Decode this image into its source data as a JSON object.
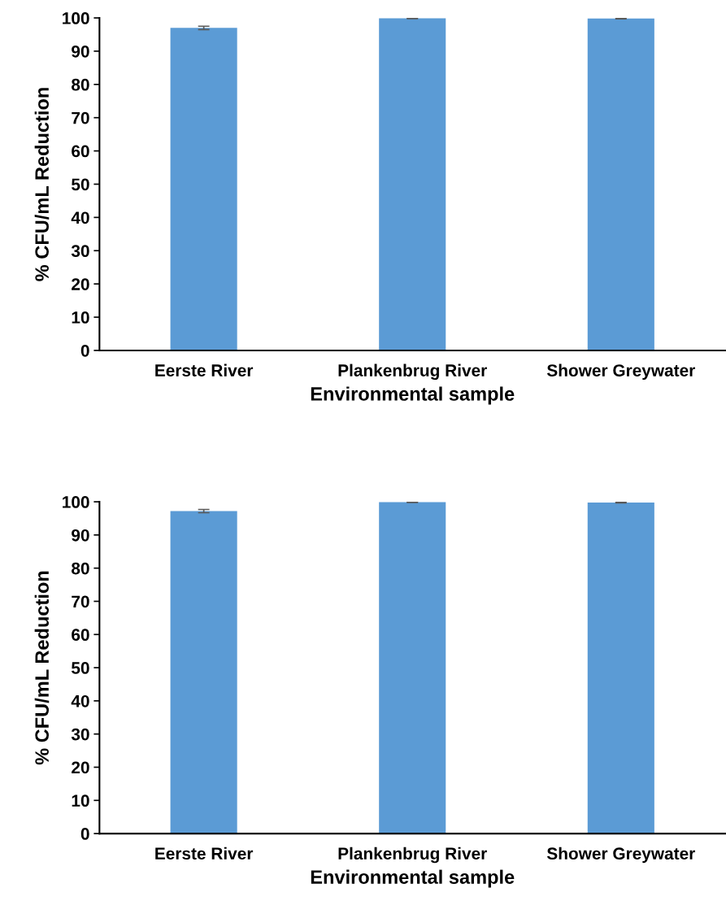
{
  "chart_data": [
    {
      "type": "bar",
      "xlabel": "Environmental sample",
      "ylabel": "% CFU/mL Reduction",
      "categories": [
        "Eerste River",
        "Plankenbrug River",
        "Shower Greywater"
      ],
      "values": [
        97.0,
        99.9,
        99.8
      ],
      "errors": [
        0.5,
        0.1,
        0.1
      ],
      "color": "#5b9bd5",
      "ylim": [
        0,
        100
      ],
      "yticks": [
        0,
        10,
        20,
        30,
        40,
        50,
        60,
        70,
        80,
        90,
        100
      ],
      "grid": false,
      "legend": false
    },
    {
      "type": "bar",
      "xlabel": "Environmental sample",
      "ylabel": "% CFU/mL Reduction",
      "categories": [
        "Eerste River",
        "Plankenbrug River",
        "Shower Greywater"
      ],
      "values": [
        97.2,
        99.9,
        99.8
      ],
      "errors": [
        0.5,
        0.1,
        0.1
      ],
      "color": "#5b9bd5",
      "ylim": [
        0,
        100
      ],
      "yticks": [
        0,
        10,
        20,
        30,
        40,
        50,
        60,
        70,
        80,
        90,
        100
      ],
      "grid": false,
      "legend": false
    }
  ]
}
